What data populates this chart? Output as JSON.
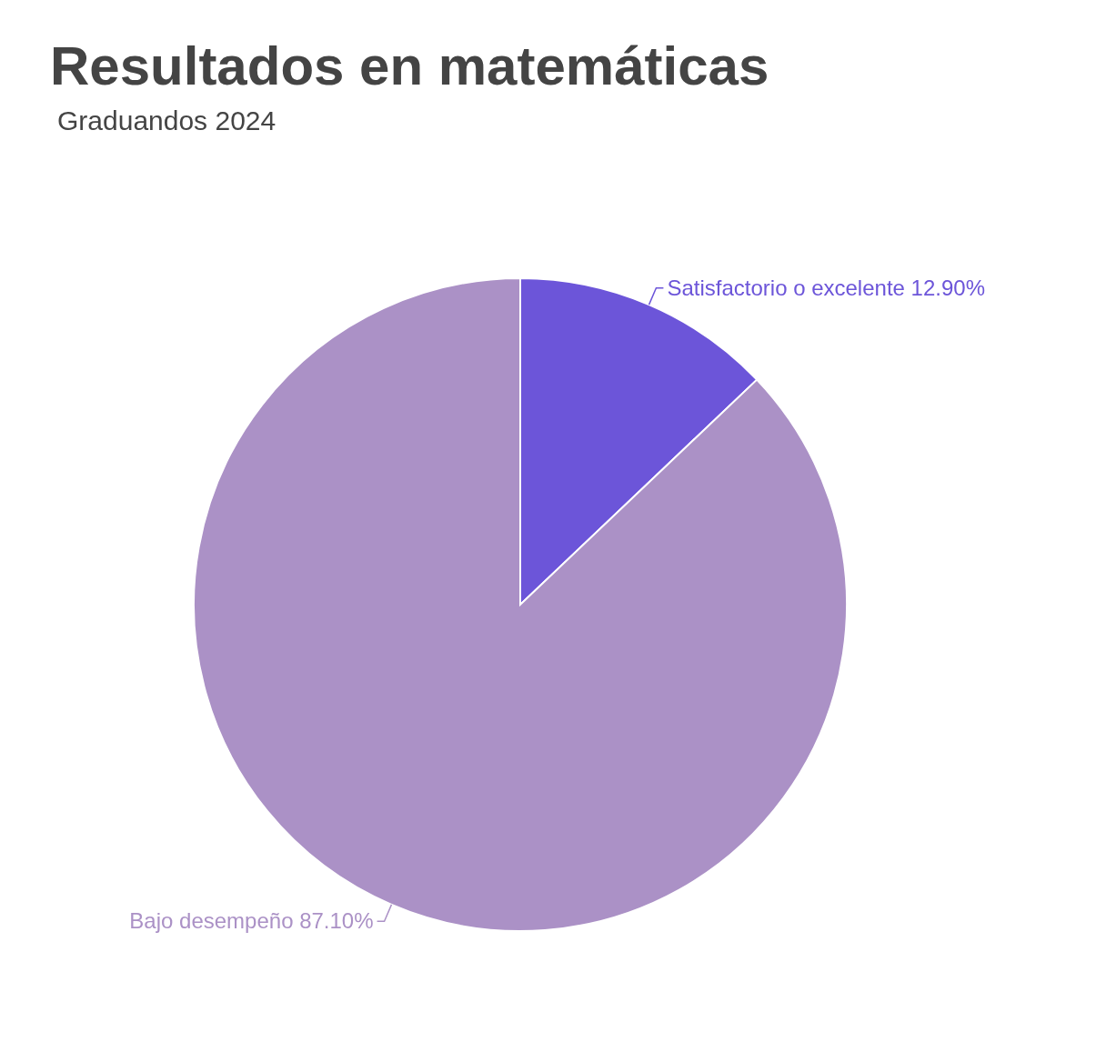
{
  "chart_data": {
    "type": "pie",
    "title": "Resultados en matemáticas",
    "subtitle": "Graduandos 2024",
    "categories": [
      "Satisfactorio o excelente",
      "Bajo desempeño"
    ],
    "values": [
      12.9,
      87.1
    ],
    "value_labels": [
      "12.90%",
      "87.10%"
    ],
    "colors": [
      "#6c55d9",
      "#ab91c6"
    ],
    "legend": false
  }
}
